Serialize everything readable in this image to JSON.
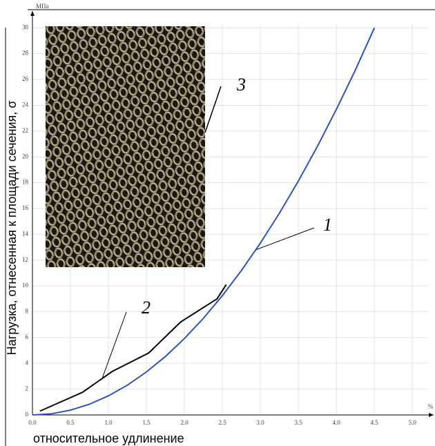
{
  "chart_data": {
    "type": "line",
    "y_label": "Нагрузка, отнесенная к площади сечения, σ",
    "x_label": "относительное удлинение",
    "y_unit": "МПа",
    "x_unit": "%",
    "annotations": [
      "1",
      "2",
      "3"
    ],
    "xlim": [
      0,
      5.28
    ],
    "ylim": [
      0,
      31.3
    ],
    "xticks": [
      {
        "value": 0,
        "label": "0.0"
      },
      0.5,
      {
        "value": 1,
        "label": "1.0"
      },
      1.5,
      {
        "value": 2,
        "label": "2.0"
      },
      2.5,
      {
        "value": 3,
        "label": "3.0"
      },
      3.5,
      {
        "value": 4,
        "label": "4.0"
      },
      4.5,
      {
        "value": 5,
        "label": "5.0"
      }
    ],
    "yticks": [
      0,
      2,
      4,
      6,
      8,
      10,
      12,
      14,
      16,
      18,
      20,
      22,
      24,
      26,
      28,
      30
    ],
    "grid": true,
    "series": [
      {
        "name": "1",
        "color": "#2a4fc8",
        "x": [
          0,
          0.25,
          0.5,
          0.75,
          1,
          1.25,
          1.5,
          1.75,
          2,
          2.25,
          2.5,
          2.75,
          3,
          3.25,
          3.5,
          3.75,
          4,
          4.25,
          4.5
        ],
        "values": [
          0,
          0.09,
          0.37,
          0.83,
          1.48,
          2.31,
          3.33,
          4.53,
          5.92,
          7.49,
          9.25,
          11.19,
          13.32,
          15.63,
          18.13,
          20.81,
          23.68,
          26.73,
          30
        ]
      },
      {
        "name": "2",
        "color": "#000000",
        "x": [
          0.1,
          0.66,
          1.05,
          1.53,
          1.95,
          2.43,
          2.55
        ],
        "values": [
          0.3,
          1.76,
          3.37,
          4.8,
          7.2,
          9.0,
          10.1
        ]
      }
    ]
  }
}
